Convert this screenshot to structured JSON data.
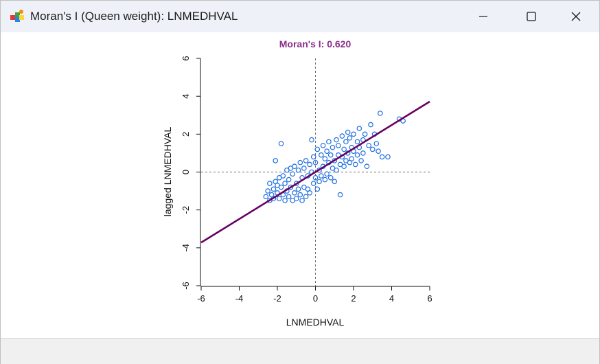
{
  "window": {
    "title": "Moran's I (Queen weight): LNMEDHVAL",
    "controls": {
      "minimize": "minimize",
      "maximize": "maximize",
      "close": "close"
    }
  },
  "chart_data": {
    "type": "scatter",
    "title": "Moran's I: 0.620",
    "xlabel": "LNMEDHVAL",
    "ylabel": "lagged LNMEDHVAL",
    "xlim": [
      -6,
      6
    ],
    "ylim": [
      -6,
      6
    ],
    "xticks": [
      "-6",
      "-4",
      "-2",
      "0",
      "2",
      "4",
      "6"
    ],
    "yticks": [
      "-6",
      "-4",
      "-2",
      "0",
      "2",
      "4",
      "6"
    ],
    "regression_line": {
      "slope": 0.62,
      "intercept": 0.0,
      "color": "#660066"
    },
    "reference_lines": {
      "x": 0,
      "y": 0,
      "style": "dashed"
    },
    "point_color": "#1f6fe0",
    "title_color": "#8a2e8a",
    "points": [
      [
        -2.6,
        -1.3
      ],
      [
        -2.5,
        -1.0
      ],
      [
        -2.4,
        -1.5
      ],
      [
        -2.4,
        -0.6
      ],
      [
        -2.3,
        -1.2
      ],
      [
        -2.2,
        -0.9
      ],
      [
        -2.2,
        -1.4
      ],
      [
        -2.1,
        -0.5
      ],
      [
        -2.1,
        0.6
      ],
      [
        -2.0,
        -1.1
      ],
      [
        -2.0,
        -0.7
      ],
      [
        -1.9,
        -1.4
      ],
      [
        -1.9,
        -0.3
      ],
      [
        -1.8,
        1.5
      ],
      [
        -1.8,
        -0.8
      ],
      [
        -1.7,
        -1.2
      ],
      [
        -1.7,
        -0.2
      ],
      [
        -1.6,
        -1.5
      ],
      [
        -1.6,
        -0.6
      ],
      [
        -1.5,
        0.1
      ],
      [
        -1.5,
        -1.0
      ],
      [
        -1.4,
        -0.4
      ],
      [
        -1.4,
        -1.3
      ],
      [
        -1.3,
        0.2
      ],
      [
        -1.3,
        -0.8
      ],
      [
        -1.2,
        -1.5
      ],
      [
        -1.2,
        -0.1
      ],
      [
        -1.1,
        -1.1
      ],
      [
        -1.1,
        0.3
      ],
      [
        -1.0,
        -0.6
      ],
      [
        -1.0,
        -1.4
      ],
      [
        -0.9,
        0.1
      ],
      [
        -0.9,
        -0.9
      ],
      [
        -0.8,
        0.5
      ],
      [
        -0.8,
        -1.2
      ],
      [
        -0.7,
        -0.3
      ],
      [
        -0.7,
        -1.5
      ],
      [
        -0.6,
        0.2
      ],
      [
        -0.6,
        -0.8
      ],
      [
        -0.5,
        0.6
      ],
      [
        -0.5,
        -1.3
      ],
      [
        -0.4,
        -0.2
      ],
      [
        -0.4,
        -0.9
      ],
      [
        -0.3,
        0.4
      ],
      [
        -0.3,
        -1.1
      ],
      [
        -0.2,
        1.7
      ],
      [
        -0.2,
        0.0
      ],
      [
        -0.1,
        -0.6
      ],
      [
        -0.1,
        0.8
      ],
      [
        0.0,
        -0.3
      ],
      [
        0.0,
        0.5
      ],
      [
        0.1,
        -0.9
      ],
      [
        0.1,
        1.2
      ],
      [
        0.2,
        0.1
      ],
      [
        0.2,
        -0.5
      ],
      [
        0.3,
        0.9
      ],
      [
        0.3,
        -0.2
      ],
      [
        0.4,
        1.4
      ],
      [
        0.4,
        0.3
      ],
      [
        0.5,
        -0.4
      ],
      [
        0.5,
        0.7
      ],
      [
        0.6,
        1.1
      ],
      [
        0.6,
        -0.1
      ],
      [
        0.7,
        0.5
      ],
      [
        0.7,
        1.6
      ],
      [
        0.8,
        -0.3
      ],
      [
        0.8,
        0.9
      ],
      [
        0.9,
        0.2
      ],
      [
        0.9,
        1.3
      ],
      [
        1.0,
        0.6
      ],
      [
        1.0,
        -0.5
      ],
      [
        1.1,
        1.7
      ],
      [
        1.1,
        0.1
      ],
      [
        1.2,
        0.9
      ],
      [
        1.2,
        1.4
      ],
      [
        1.3,
        -1.2
      ],
      [
        1.3,
        0.4
      ],
      [
        1.4,
        1.9
      ],
      [
        1.4,
        0.8
      ],
      [
        1.5,
        1.2
      ],
      [
        1.5,
        0.3
      ],
      [
        1.6,
        1.6
      ],
      [
        1.6,
        0.6
      ],
      [
        1.7,
        2.1
      ],
      [
        1.7,
        1.0
      ],
      [
        1.8,
        0.5
      ],
      [
        1.8,
        1.8
      ],
      [
        1.9,
        1.3
      ],
      [
        1.9,
        0.7
      ],
      [
        2.0,
        2.0
      ],
      [
        2.0,
        1.1
      ],
      [
        2.1,
        0.4
      ],
      [
        2.2,
        1.6
      ],
      [
        2.2,
        0.9
      ],
      [
        2.3,
        2.3
      ],
      [
        2.3,
        1.3
      ],
      [
        2.4,
        0.6
      ],
      [
        2.5,
        1.7
      ],
      [
        2.5,
        1.0
      ],
      [
        2.6,
        2.0
      ],
      [
        2.7,
        0.3
      ],
      [
        2.8,
        1.4
      ],
      [
        2.9,
        2.5
      ],
      [
        3.0,
        1.2
      ],
      [
        3.1,
        2.0
      ],
      [
        3.2,
        1.5
      ],
      [
        3.3,
        1.1
      ],
      [
        3.4,
        3.1
      ],
      [
        3.5,
        0.8
      ],
      [
        3.8,
        0.8
      ],
      [
        4.4,
        2.8
      ],
      [
        4.6,
        2.7
      ]
    ]
  }
}
